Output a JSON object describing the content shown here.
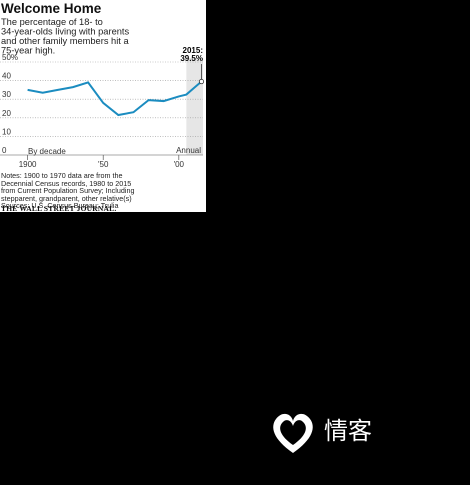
{
  "chart_data": {
    "type": "line",
    "title": "Welcome Home",
    "subtitle_lines": [
      "The percentage of 18- to",
      "34-year-olds living with parents",
      "and other family members hit a",
      "75-year high."
    ],
    "annotation": "2015:",
    "period_labels": [
      "By decade",
      "Annual"
    ],
    "annual_from": 2005,
    "x": [
      1900,
      1910,
      1920,
      1930,
      1940,
      1950,
      1960,
      1970,
      1980,
      1990,
      2000,
      2005,
      2010,
      2015
    ],
    "series": [
      {
        "name": "Share living with family",
        "color": "#1b8cc0",
        "values": [
          35,
          33.5,
          35,
          36.5,
          39,
          28,
          21.5,
          23,
          29.5,
          29,
          31.5,
          32.5,
          36,
          39.5
        ],
        "value_labels": [
          null,
          null,
          null,
          null,
          null,
          null,
          null,
          null,
          null,
          null,
          null,
          null,
          null,
          "39.5%"
        ]
      }
    ],
    "xlim": [
      1891,
      2016
    ],
    "xticks": [
      {
        "value": 1900,
        "label": "1900"
      },
      {
        "value": 1950,
        "label": "'50"
      },
      {
        "value": 2000,
        "label": "'00"
      }
    ],
    "ylim": [
      0,
      50
    ],
    "yticks": [
      0,
      10,
      20,
      30,
      40,
      {
        "value": 50,
        "label": "50%"
      }
    ],
    "grid": true,
    "notes": [
      "Notes: 1900 to 1970 data are from the",
      "Decennial Census records, 1980 to 2015",
      "from Current Population Survey; Including",
      "stepparent, grandparent, other relative(s)",
      "Sources: U.S. Census Bureau; Trulia"
    ],
    "source": "THE WALL STREET JOURNAL."
  },
  "watermark": {
    "text": "情客"
  }
}
